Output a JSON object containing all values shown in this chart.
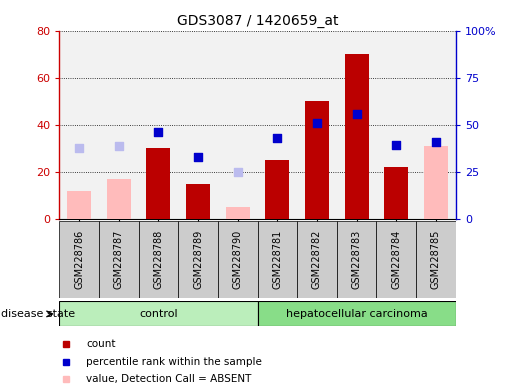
{
  "title": "GDS3087 / 1420659_at",
  "samples": [
    "GSM228786",
    "GSM228787",
    "GSM228788",
    "GSM228789",
    "GSM228790",
    "GSM228781",
    "GSM228782",
    "GSM228783",
    "GSM228784",
    "GSM228785"
  ],
  "groups": [
    "control",
    "control",
    "control",
    "control",
    "control",
    "hepatocellular carcinoma",
    "hepatocellular carcinoma",
    "hepatocellular carcinoma",
    "hepatocellular carcinoma",
    "hepatocellular carcinoma"
  ],
  "count": [
    null,
    null,
    30,
    15,
    null,
    25,
    50,
    70,
    22,
    null
  ],
  "percentile_rank": [
    null,
    null,
    46,
    33,
    null,
    43,
    51,
    56,
    39,
    41
  ],
  "value_absent": [
    12,
    17,
    null,
    null,
    5,
    null,
    null,
    null,
    null,
    31
  ],
  "rank_absent": [
    30,
    31,
    null,
    null,
    20,
    null,
    null,
    null,
    null,
    null
  ],
  "ylim_left": [
    0,
    80
  ],
  "ylim_right": [
    0,
    100
  ],
  "yticks_left": [
    0,
    20,
    40,
    60,
    80
  ],
  "yticks_right": [
    0,
    25,
    50,
    75,
    100
  ],
  "ytick_right_labels": [
    "0",
    "25",
    "50",
    "75",
    "100%"
  ],
  "left_axis_color": "#cc0000",
  "right_axis_color": "#0000cc",
  "bar_color_count": "#bb0000",
  "bar_color_absent": "#ffbbbb",
  "square_color_percentile": "#0000cc",
  "square_color_rank_absent": "#bbbbee",
  "col_bg_color": "#cccccc",
  "control_color": "#bbeebb",
  "carcinoma_color": "#88dd88",
  "title_fontsize": 10,
  "tick_label_fontsize": 7,
  "legend_fontsize": 7.5,
  "disease_fontsize": 8,
  "n_control": 5,
  "n_carcinoma": 5
}
